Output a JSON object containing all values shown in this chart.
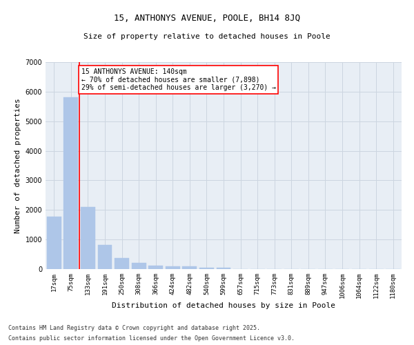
{
  "title1": "15, ANTHONYS AVENUE, POOLE, BH14 8JQ",
  "title2": "Size of property relative to detached houses in Poole",
  "xlabel": "Distribution of detached houses by size in Poole",
  "ylabel": "Number of detached properties",
  "categories": [
    "17sqm",
    "75sqm",
    "133sqm",
    "191sqm",
    "250sqm",
    "308sqm",
    "366sqm",
    "424sqm",
    "482sqm",
    "540sqm",
    "599sqm",
    "657sqm",
    "715sqm",
    "773sqm",
    "831sqm",
    "889sqm",
    "947sqm",
    "1006sqm",
    "1064sqm",
    "1122sqm",
    "1180sqm"
  ],
  "values": [
    1780,
    5820,
    2090,
    820,
    370,
    210,
    120,
    100,
    85,
    55,
    40,
    0,
    0,
    0,
    0,
    0,
    0,
    0,
    0,
    0,
    0
  ],
  "bar_color": "#aec6e8",
  "bar_edge_color": "#aec6e8",
  "marker_label_line1": "15 ANTHONYS AVENUE: 140sqm",
  "marker_label_line2": "← 70% of detached houses are smaller (7,898)",
  "marker_label_line3": "29% of semi-detached houses are larger (3,270) →",
  "marker_color": "red",
  "annotation_box_color": "white",
  "annotation_border_color": "red",
  "grid_color": "#ccd5e0",
  "background_color": "#e8eef5",
  "ylim": [
    0,
    7000
  ],
  "yticks": [
    0,
    1000,
    2000,
    3000,
    4000,
    5000,
    6000,
    7000
  ],
  "footer1": "Contains HM Land Registry data © Crown copyright and database right 2025.",
  "footer2": "Contains public sector information licensed under the Open Government Licence v3.0.",
  "title1_fontsize": 9,
  "title2_fontsize": 8,
  "xlabel_fontsize": 8,
  "ylabel_fontsize": 8,
  "tick_fontsize": 6.5,
  "annotation_fontsize": 7,
  "footer_fontsize": 6
}
